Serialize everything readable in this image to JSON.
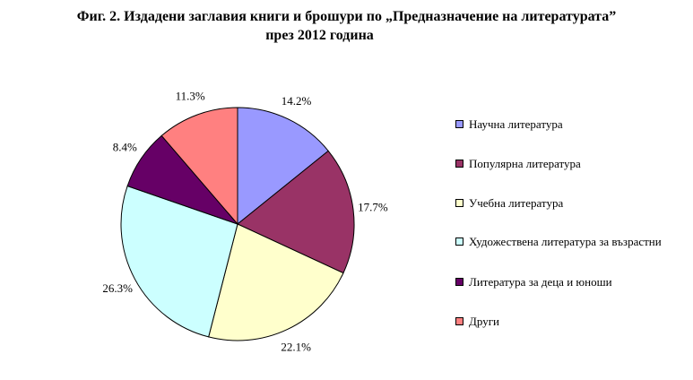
{
  "title": {
    "line1": "Фиг. 2. Издадени заглавия книги и брошури по „Предназначение на литературата”",
    "line2": "през 2012 година"
  },
  "chart_data": {
    "type": "pie",
    "title": "Фиг. 2. Издадени заглавия книги и брошури по „Предназначение на литературата” през 2012 година",
    "slices": [
      {
        "label": "Научна литература",
        "value": 14.2,
        "display": "14.2%",
        "color": "#9999ff"
      },
      {
        "label": "Популярна литература",
        "value": 17.7,
        "display": "17.7%",
        "color": "#993366"
      },
      {
        "label": "Учебна литература",
        "value": 22.1,
        "display": "22.1%",
        "color": "#ffffcc"
      },
      {
        "label": "Художествена литература за възрастни",
        "value": 26.3,
        "display": "26.3%",
        "color": "#ccffff"
      },
      {
        "label": "Литература за деца и юноши",
        "value": 8.4,
        "display": "8.4%",
        "color": "#660066"
      },
      {
        "label": "Други",
        "value": 11.3,
        "display": "11.3%",
        "color": "#ff8080"
      }
    ],
    "start_angle_deg": 0,
    "direction": "clockwise",
    "legend_position": "right"
  },
  "legend": {
    "items": [
      {
        "label": "Научна литература"
      },
      {
        "label": "Популярна литература"
      },
      {
        "label": "Учебна литература"
      },
      {
        "label": "Художествена литература за възрастни"
      },
      {
        "label": "Литература за деца и юноши"
      },
      {
        "label": "Други"
      }
    ]
  }
}
